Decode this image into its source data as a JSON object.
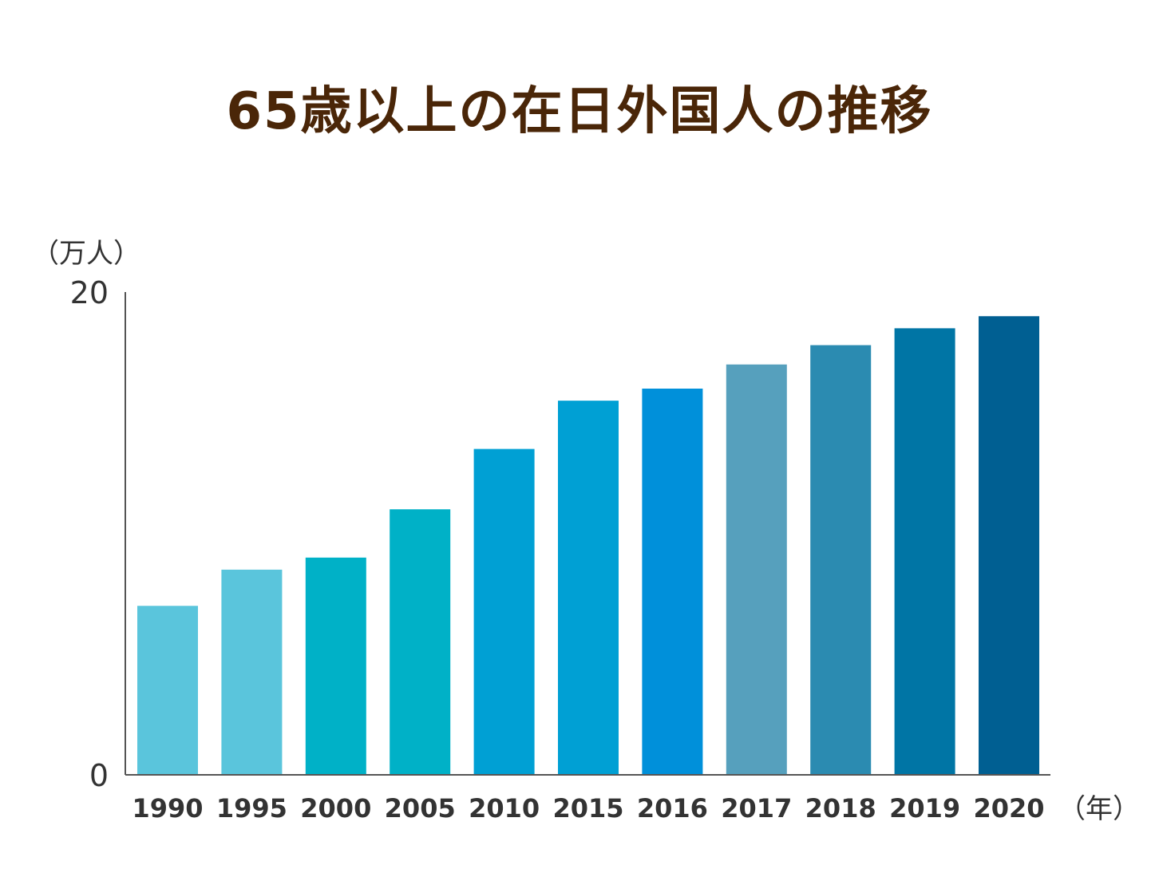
{
  "title": "65歳以上の在日外国人の推移",
  "y_unit_label": "（万人）",
  "x_unit_label": "（年）",
  "chart_data": {
    "type": "bar",
    "title": "65歳以上の在日外国人の推移",
    "ylabel": "（万人）",
    "xlabel": "（年）",
    "ylim": [
      0,
      20
    ],
    "yticks": [
      "0",
      "20"
    ],
    "grid": false,
    "categories": [
      "1990",
      "1995",
      "2000",
      "2005",
      "2010",
      "2015",
      "2016",
      "2017",
      "2018",
      "2019",
      "2020"
    ],
    "values": [
      7.0,
      8.5,
      9.0,
      11.0,
      13.5,
      15.5,
      16.0,
      17.0,
      17.8,
      18.5,
      19.0
    ],
    "colors": [
      "#5ac5dc",
      "#5ac5dc",
      "#00b1c7",
      "#00b1c7",
      "#00a0d4",
      "#00a0d4",
      "#0090da",
      "#56a0bd",
      "#2b8bb1",
      "#0075a5",
      "#005f92"
    ]
  }
}
